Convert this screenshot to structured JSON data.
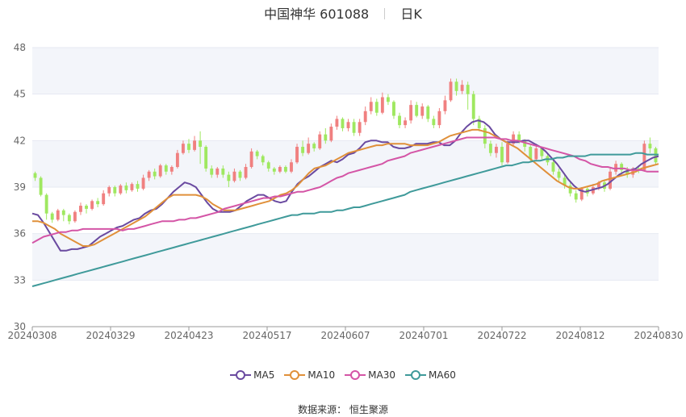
{
  "title": {
    "name": "中国神华 601088",
    "period": "日K"
  },
  "source": "数据来源： 恒生聚源",
  "chart_data": {
    "type": "candlestick",
    "ylim": [
      30,
      48
    ],
    "yticks": [
      30,
      33,
      36,
      39,
      42,
      45,
      48
    ],
    "x_tick_labels": [
      "20240308",
      "20240329",
      "20240423",
      "20240517",
      "20240607",
      "20240701",
      "20240722",
      "20240812",
      "20240830"
    ],
    "colors": {
      "up": "#f08080",
      "down": "#9fe860",
      "grid": "#e6e9f2",
      "band": "#f3f5fa"
    },
    "candles": [
      [
        39.9,
        39.6,
        40.0,
        39.4
      ],
      [
        39.6,
        38.5,
        39.7,
        38.4
      ],
      [
        38.5,
        37.3,
        38.6,
        36.9
      ],
      [
        37.3,
        36.9,
        37.4,
        36.7
      ],
      [
        36.9,
        37.5,
        37.6,
        36.8
      ],
      [
        37.5,
        37.2,
        37.6,
        36.8
      ],
      [
        37.2,
        36.8,
        37.3,
        36.6
      ],
      [
        36.8,
        37.4,
        37.5,
        36.7
      ],
      [
        37.4,
        37.8,
        38.0,
        37.2
      ],
      [
        37.8,
        37.6,
        37.9,
        37.3
      ],
      [
        37.6,
        38.1,
        38.2,
        37.5
      ],
      [
        38.1,
        37.9,
        38.3,
        37.7
      ],
      [
        37.9,
        38.6,
        38.8,
        37.8
      ],
      [
        38.6,
        39.0,
        39.1,
        38.4
      ],
      [
        39.0,
        38.6,
        39.1,
        38.4
      ],
      [
        38.6,
        39.1,
        39.2,
        38.5
      ],
      [
        39.1,
        38.8,
        39.3,
        38.6
      ],
      [
        38.8,
        39.2,
        39.3,
        38.7
      ],
      [
        39.2,
        38.9,
        39.4,
        38.7
      ],
      [
        38.9,
        39.6,
        39.8,
        38.8
      ],
      [
        39.6,
        40.0,
        40.1,
        39.4
      ],
      [
        40.0,
        39.7,
        40.2,
        39.5
      ],
      [
        39.7,
        40.4,
        40.5,
        39.6
      ],
      [
        40.4,
        40.0,
        40.5,
        39.8
      ],
      [
        40.0,
        40.3,
        40.4,
        39.8
      ],
      [
        40.3,
        41.2,
        41.4,
        40.2
      ],
      [
        41.2,
        41.8,
        42.0,
        41.1
      ],
      [
        41.8,
        41.4,
        42.1,
        41.2
      ],
      [
        41.4,
        42.0,
        42.3,
        41.3
      ],
      [
        42.0,
        41.6,
        42.6,
        40.5
      ],
      [
        41.6,
        40.2,
        41.7,
        40.0
      ],
      [
        40.2,
        39.8,
        40.4,
        39.6
      ],
      [
        39.8,
        40.2,
        40.3,
        39.6
      ],
      [
        40.2,
        39.8,
        40.4,
        39.6
      ],
      [
        39.8,
        39.4,
        40.0,
        39.0
      ],
      [
        39.4,
        40.0,
        40.2,
        39.3
      ],
      [
        40.0,
        39.6,
        40.1,
        39.4
      ],
      [
        39.6,
        40.3,
        40.5,
        39.5
      ],
      [
        40.3,
        41.3,
        41.5,
        40.2
      ],
      [
        41.3,
        41.0,
        41.4,
        40.8
      ],
      [
        41.0,
        40.6,
        41.1,
        40.4
      ],
      [
        40.6,
        40.2,
        40.7,
        40.0
      ],
      [
        40.2,
        40.0,
        40.3,
        39.8
      ],
      [
        40.0,
        40.3,
        40.4,
        39.9
      ],
      [
        40.3,
        40.0,
        40.4,
        39.9
      ],
      [
        40.0,
        40.6,
        40.8,
        39.9
      ],
      [
        40.6,
        41.6,
        41.8,
        40.5
      ],
      [
        41.6,
        41.2,
        42.0,
        41.0
      ],
      [
        41.2,
        41.8,
        42.2,
        41.1
      ],
      [
        41.8,
        41.5,
        41.9,
        41.3
      ],
      [
        41.5,
        42.4,
        42.6,
        41.4
      ],
      [
        42.4,
        42.0,
        42.8,
        41.8
      ],
      [
        42.0,
        42.9,
        43.1,
        41.9
      ],
      [
        42.9,
        43.4,
        43.6,
        42.7
      ],
      [
        43.4,
        42.8,
        43.5,
        42.6
      ],
      [
        42.8,
        43.2,
        43.4,
        42.6
      ],
      [
        43.2,
        42.5,
        43.4,
        42.3
      ],
      [
        42.5,
        43.2,
        43.4,
        42.3
      ],
      [
        43.2,
        43.9,
        44.2,
        43.0
      ],
      [
        43.9,
        44.5,
        44.8,
        43.7
      ],
      [
        44.5,
        43.8,
        44.7,
        43.6
      ],
      [
        43.8,
        44.8,
        45.1,
        43.7
      ],
      [
        44.8,
        44.5,
        45.0,
        44.3
      ],
      [
        44.5,
        43.6,
        44.6,
        43.4
      ],
      [
        43.6,
        43.0,
        43.8,
        42.8
      ],
      [
        43.0,
        43.3,
        43.5,
        42.8
      ],
      [
        43.3,
        44.3,
        44.6,
        43.1
      ],
      [
        44.3,
        43.6,
        44.5,
        43.5
      ],
      [
        43.6,
        44.2,
        44.4,
        43.4
      ],
      [
        44.2,
        43.4,
        44.3,
        43.2
      ],
      [
        43.4,
        43.0,
        43.6,
        42.8
      ],
      [
        43.0,
        43.9,
        44.1,
        42.8
      ],
      [
        43.9,
        44.6,
        44.9,
        43.7
      ],
      [
        44.6,
        45.8,
        46.0,
        44.5
      ],
      [
        45.8,
        45.2,
        46.0,
        44.9
      ],
      [
        45.2,
        45.6,
        45.9,
        45.0
      ],
      [
        45.6,
        45.0,
        45.8,
        44.0
      ],
      [
        45.0,
        43.4,
        45.2,
        43.0
      ],
      [
        43.4,
        42.8,
        43.6,
        42.6
      ],
      [
        42.8,
        41.8,
        43.0,
        41.5
      ],
      [
        41.8,
        41.2,
        42.0,
        41.0
      ],
      [
        41.2,
        41.6,
        41.8,
        40.9
      ],
      [
        41.6,
        40.6,
        41.9,
        40.4
      ],
      [
        40.6,
        41.8,
        42.0,
        40.5
      ],
      [
        41.8,
        42.4,
        42.6,
        41.6
      ],
      [
        42.4,
        42.0,
        42.6,
        41.8
      ],
      [
        42.0,
        41.6,
        42.1,
        41.3
      ],
      [
        41.6,
        40.8,
        41.7,
        40.6
      ],
      [
        40.8,
        41.5,
        41.8,
        40.7
      ],
      [
        41.5,
        41.0,
        41.6,
        40.8
      ],
      [
        41.0,
        40.6,
        41.2,
        40.4
      ],
      [
        40.6,
        40.0,
        40.7,
        39.8
      ],
      [
        40.0,
        39.6,
        40.2,
        39.4
      ],
      [
        39.6,
        39.1,
        39.8,
        38.9
      ],
      [
        39.1,
        38.6,
        39.3,
        38.4
      ],
      [
        38.6,
        38.2,
        38.8,
        38.0
      ],
      [
        38.2,
        38.9,
        39.0,
        38.1
      ],
      [
        38.9,
        38.6,
        39.0,
        38.4
      ],
      [
        38.6,
        39.0,
        39.2,
        38.5
      ],
      [
        39.0,
        39.3,
        39.4,
        38.8
      ],
      [
        39.3,
        38.9,
        39.5,
        38.7
      ],
      [
        38.9,
        40.0,
        40.2,
        38.8
      ],
      [
        40.0,
        40.5,
        40.7,
        39.8
      ],
      [
        40.5,
        40.1,
        40.6,
        39.8
      ],
      [
        40.1,
        39.8,
        40.3,
        39.6
      ],
      [
        39.8,
        40.2,
        40.3,
        39.6
      ],
      [
        40.2,
        40.1,
        40.4,
        39.9
      ],
      [
        40.1,
        41.8,
        42.0,
        40.0
      ],
      [
        41.8,
        41.5,
        42.2,
        41.2
      ],
      [
        41.5,
        40.6,
        41.6,
        40.4
      ]
    ],
    "series": [
      {
        "name": "MA5",
        "color": "#6a4aa0",
        "values": [
          37.3,
          37.2,
          36.7,
          36.1,
          35.5,
          34.9,
          34.9,
          35.0,
          35.0,
          35.1,
          35.2,
          35.5,
          35.8,
          36.0,
          36.2,
          36.4,
          36.5,
          36.7,
          36.9,
          37.0,
          37.3,
          37.5,
          37.6,
          37.9,
          38.3,
          38.7,
          39.0,
          39.3,
          39.2,
          39.0,
          38.5,
          38.0,
          37.6,
          37.4,
          37.4,
          37.4,
          37.5,
          37.8,
          38.1,
          38.3,
          38.5,
          38.5,
          38.3,
          38.1,
          38.0,
          38.1,
          38.7,
          39.2,
          39.5,
          39.7,
          40.0,
          40.3,
          40.5,
          40.7,
          40.6,
          40.8,
          41.1,
          41.2,
          41.5,
          41.9,
          42.0,
          42.0,
          41.9,
          41.9,
          41.6,
          41.5,
          41.5,
          41.6,
          41.8,
          41.8,
          41.8,
          41.9,
          41.9,
          41.7,
          41.7,
          42.0,
          42.5,
          42.9,
          43.2,
          43.3,
          43.2,
          42.9,
          42.4,
          42.1,
          41.9,
          41.9,
          41.9,
          42.0,
          42.0,
          41.8,
          41.6,
          41.3,
          40.9,
          40.5,
          40.0,
          39.5,
          39.1,
          38.8,
          38.7,
          38.8,
          38.9,
          39.0,
          39.2,
          39.5,
          39.8,
          40.0,
          40.1,
          40.2,
          40.5,
          40.7,
          40.9,
          41.0
        ]
      },
      {
        "name": "MA10",
        "color": "#e0903a",
        "values": [
          36.8,
          36.8,
          36.7,
          36.5,
          36.3,
          36.0,
          35.8,
          35.6,
          35.4,
          35.2,
          35.2,
          35.3,
          35.5,
          35.7,
          35.9,
          36.1,
          36.3,
          36.5,
          36.7,
          36.9,
          37.1,
          37.4,
          37.7,
          38.0,
          38.3,
          38.5,
          38.5,
          38.5,
          38.5,
          38.5,
          38.4,
          38.2,
          37.9,
          37.7,
          37.5,
          37.5,
          37.5,
          37.6,
          37.7,
          37.8,
          37.9,
          38.0,
          38.1,
          38.3,
          38.5,
          38.6,
          38.8,
          39.1,
          39.5,
          39.9,
          40.2,
          40.3,
          40.4,
          40.6,
          40.8,
          41.0,
          41.2,
          41.3,
          41.4,
          41.5,
          41.6,
          41.7,
          41.7,
          41.8,
          41.8,
          41.8,
          41.8,
          41.7,
          41.7,
          41.7,
          41.7,
          41.8,
          41.9,
          42.1,
          42.3,
          42.4,
          42.5,
          42.6,
          42.7,
          42.7,
          42.6,
          42.5,
          42.3,
          42.1,
          41.9,
          41.7,
          41.5,
          41.2,
          40.9,
          40.6,
          40.3,
          40.0,
          39.7,
          39.4,
          39.2,
          39.0,
          38.9,
          38.9,
          39.0,
          39.1,
          39.2,
          39.4,
          39.5,
          39.6,
          39.7,
          39.8,
          39.9,
          40.0,
          40.2,
          40.3,
          40.4,
          40.5
        ]
      },
      {
        "name": "MA30",
        "color": "#d455a6",
        "values": [
          35.4,
          35.6,
          35.8,
          35.9,
          36.0,
          36.1,
          36.1,
          36.2,
          36.2,
          36.3,
          36.3,
          36.3,
          36.3,
          36.3,
          36.3,
          36.3,
          36.2,
          36.3,
          36.3,
          36.4,
          36.5,
          36.6,
          36.7,
          36.8,
          36.8,
          36.8,
          36.9,
          36.9,
          37.0,
          37.0,
          37.1,
          37.2,
          37.3,
          37.4,
          37.6,
          37.7,
          37.8,
          37.9,
          38.0,
          38.1,
          38.2,
          38.3,
          38.3,
          38.4,
          38.4,
          38.5,
          38.6,
          38.7,
          38.7,
          38.8,
          38.9,
          39.0,
          39.2,
          39.4,
          39.6,
          39.7,
          39.9,
          40.0,
          40.1,
          40.2,
          40.3,
          40.4,
          40.5,
          40.7,
          40.8,
          40.9,
          41.0,
          41.2,
          41.3,
          41.4,
          41.5,
          41.6,
          41.7,
          41.8,
          41.9,
          42.0,
          42.1,
          42.2,
          42.2,
          42.2,
          42.2,
          42.2,
          42.2,
          42.1,
          42.1,
          42.0,
          42.0,
          41.9,
          41.8,
          41.7,
          41.6,
          41.5,
          41.4,
          41.3,
          41.2,
          41.1,
          41.0,
          40.8,
          40.7,
          40.5,
          40.4,
          40.3,
          40.3,
          40.2,
          40.2,
          40.2,
          40.1,
          40.1,
          40.1,
          40.0,
          40.0,
          40.0
        ]
      },
      {
        "name": "MA60",
        "color": "#3f9a9a",
        "values": [
          32.6,
          32.7,
          32.8,
          32.9,
          33.0,
          33.1,
          33.2,
          33.3,
          33.4,
          33.5,
          33.6,
          33.7,
          33.8,
          33.9,
          34.0,
          34.1,
          34.2,
          34.3,
          34.4,
          34.5,
          34.6,
          34.7,
          34.8,
          34.9,
          35.0,
          35.1,
          35.2,
          35.3,
          35.4,
          35.5,
          35.6,
          35.7,
          35.8,
          35.9,
          36.0,
          36.1,
          36.2,
          36.3,
          36.4,
          36.5,
          36.6,
          36.7,
          36.8,
          36.9,
          37.0,
          37.1,
          37.2,
          37.2,
          37.3,
          37.3,
          37.3,
          37.4,
          37.4,
          37.4,
          37.5,
          37.5,
          37.6,
          37.7,
          37.7,
          37.8,
          37.9,
          38.0,
          38.1,
          38.2,
          38.3,
          38.4,
          38.5,
          38.7,
          38.8,
          38.9,
          39.0,
          39.1,
          39.2,
          39.3,
          39.4,
          39.5,
          39.6,
          39.7,
          39.8,
          39.9,
          40.0,
          40.1,
          40.2,
          40.3,
          40.4,
          40.4,
          40.5,
          40.6,
          40.6,
          40.7,
          40.7,
          40.8,
          40.8,
          40.9,
          40.9,
          41.0,
          41.0,
          41.0,
          41.0,
          41.1,
          41.1,
          41.1,
          41.1,
          41.1,
          41.1,
          41.1,
          41.1,
          41.2,
          41.2,
          41.1,
          41.1,
          41.1
        ]
      }
    ]
  }
}
